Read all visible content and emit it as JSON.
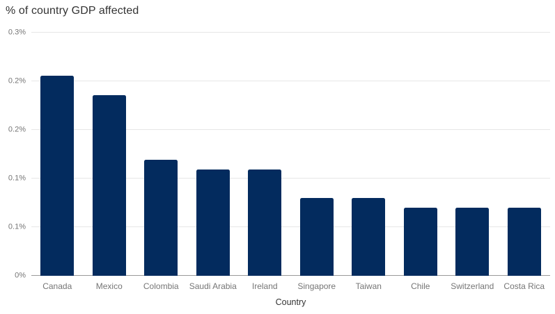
{
  "title": "% of country GDP affected",
  "colors": {
    "bar": "#032b5e",
    "gridline": "#e6e6e6",
    "axis_line": "#999999",
    "tick_label": "#757575",
    "category_label": "#757575",
    "axis_title": "#333333",
    "title": "#333333",
    "background": "#ffffff"
  },
  "chart_data": {
    "type": "bar",
    "title": "% of country GDP affected",
    "categories": [
      "Canada",
      "Mexico",
      "Colombia",
      "Saudi Arabia",
      "Ireland",
      "Singapore",
      "Taiwan",
      "Chile",
      "Switzerland",
      "Costa Rica"
    ],
    "values": [
      0.206,
      0.186,
      0.119,
      0.109,
      0.109,
      0.08,
      0.08,
      0.07,
      0.07,
      0.07
    ],
    "xlabel": "Country",
    "ylabel": "",
    "ylim": [
      0,
      0.25
    ],
    "yticks": [
      {
        "value": 0,
        "label": "0%"
      },
      {
        "value": 0.05,
        "label": "0.1%"
      },
      {
        "value": 0.1,
        "label": "0.1%"
      },
      {
        "value": 0.15,
        "label": "0.2%"
      },
      {
        "value": 0.2,
        "label": "0.2%"
      },
      {
        "value": 0.25,
        "label": "0.3%"
      }
    ],
    "grid": "horizontal",
    "legend": "none"
  }
}
